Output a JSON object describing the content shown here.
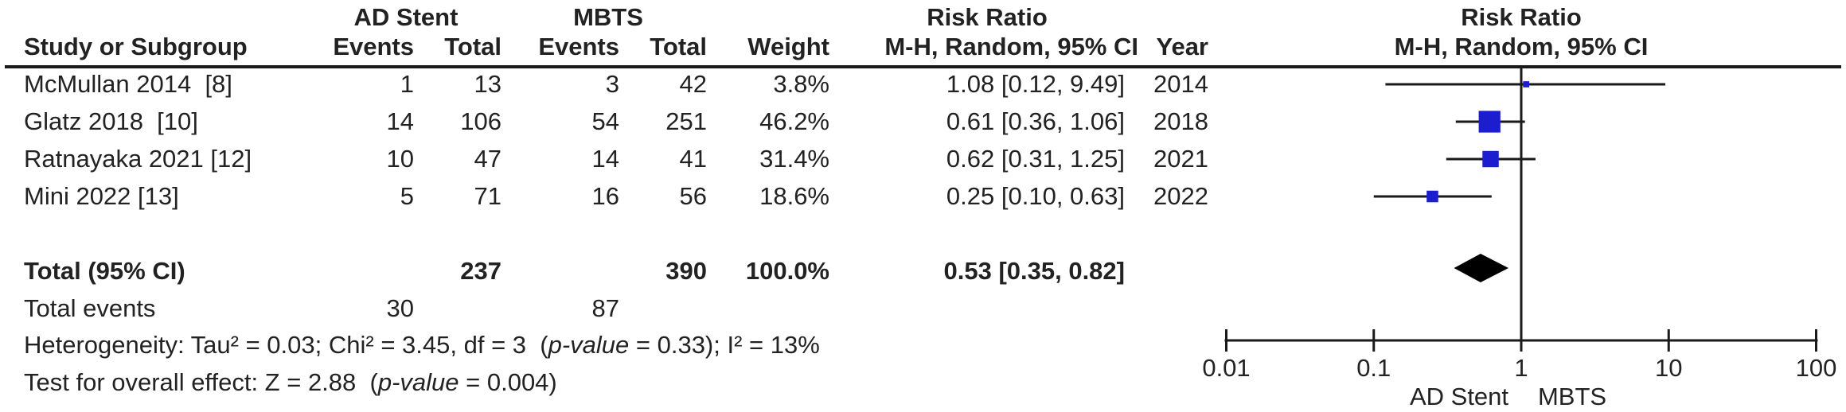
{
  "colors": {
    "square_blue": "#1d1dd0",
    "diamond_black": "#000000",
    "line": "#1a1a1a",
    "text": "#222222"
  },
  "headers": {
    "group_ad": "AD Stent",
    "group_mbts": "MBTS",
    "risk_ratio_left": "Risk Ratio",
    "risk_ratio_right": "Risk Ratio",
    "study": "Study or Subgroup",
    "events1": "Events",
    "total1": "Total",
    "events2": "Events",
    "total2": "Total",
    "weight": "Weight",
    "mh_left": "M-H, Random, 95% CI",
    "year": "Year",
    "mh_right": "M-H, Random, 95% CI"
  },
  "studies": [
    {
      "name": "McMullan 2014  [8]",
      "events1": "1",
      "total1": "13",
      "events2": "3",
      "total2": "42",
      "weight": "3.8%",
      "rr_ci": "1.08 [0.12, 9.49]",
      "year": "2014"
    },
    {
      "name": "Glatz 2018  [10]",
      "events1": "14",
      "total1": "106",
      "events2": "54",
      "total2": "251",
      "weight": "46.2%",
      "rr_ci": "0.61 [0.36, 1.06]",
      "year": "2018"
    },
    {
      "name": "Ratnayaka 2021 [12]",
      "events1": "10",
      "total1": "47",
      "events2": "14",
      "total2": "41",
      "weight": "31.4%",
      "rr_ci": "0.62 [0.31, 1.25]",
      "year": "2021"
    },
    {
      "name": "Mini 2022 [13]",
      "events1": "5",
      "total1": "71",
      "events2": "16",
      "total2": "56",
      "weight": "18.6%",
      "rr_ci": "0.25 [0.10, 0.63]",
      "year": "2022"
    }
  ],
  "total_row": {
    "label": "Total (95% CI)",
    "total1": "237",
    "total2": "390",
    "weight": "100.0%",
    "rr_ci": "0.53 [0.35, 0.82]"
  },
  "total_events": {
    "label": "Total events",
    "events1": "30",
    "events2": "87"
  },
  "stats": {
    "heterogeneity": {
      "p1": "Heterogeneity: Tau² = 0.03; Chi² = 3.45, df = 3  (",
      "italic": "p-value",
      "p2": " = 0.33); I² = 13%"
    },
    "overall": {
      "p1": "Test for overall effect: Z = 2.88  (",
      "italic": "p-value",
      "p2": " = 0.004)"
    }
  },
  "chart_data": {
    "type": "forest",
    "x_scale": "log10",
    "x_ticks": [
      0.01,
      0.1,
      1,
      10,
      100
    ],
    "x_tick_labels": [
      "0.01",
      "0.1",
      "1",
      "10",
      "100"
    ],
    "null_line": 1,
    "favours_left": "AD Stent",
    "favours_right": "MBTS",
    "effect_measure": "Risk Ratio, M-H, Random, 95% CI",
    "studies": [
      {
        "label": "McMullan 2014 [8]",
        "rr": 1.08,
        "ci": [
          0.12,
          9.49
        ],
        "weight_pct": 3.8,
        "year": 2014
      },
      {
        "label": "Glatz 2018 [10]",
        "rr": 0.61,
        "ci": [
          0.36,
          1.06
        ],
        "weight_pct": 46.2,
        "year": 2018
      },
      {
        "label": "Ratnayaka 2021 [12]",
        "rr": 0.62,
        "ci": [
          0.31,
          1.25
        ],
        "weight_pct": 31.4,
        "year": 2021
      },
      {
        "label": "Mini 2022 [13]",
        "rr": 0.25,
        "ci": [
          0.1,
          0.63
        ],
        "weight_pct": 18.6,
        "year": 2022
      }
    ],
    "summary": {
      "label": "Total (95% CI)",
      "rr": 0.53,
      "ci": [
        0.35,
        0.82
      ]
    }
  }
}
